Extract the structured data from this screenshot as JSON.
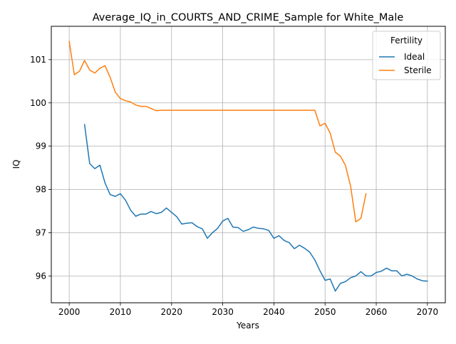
{
  "chart_data": {
    "type": "line",
    "title": "Average_IQ_in_COURTS_AND_CRIME_Sample for White_Male",
    "xlabel": "Years",
    "ylabel": "IQ",
    "xlim": [
      1996.5,
      2073.5
    ],
    "ylim": [
      95.38,
      101.77
    ],
    "x_ticks": [
      2000,
      2010,
      2020,
      2030,
      2040,
      2050,
      2060,
      2070
    ],
    "y_ticks": [
      96,
      97,
      98,
      99,
      100,
      101
    ],
    "grid": true,
    "legend": {
      "title": "Fertility",
      "placement": "top-right"
    },
    "series": [
      {
        "name": "Ideal",
        "color": "#1f77b4",
        "x": [
          2003,
          2004,
          2005,
          2006,
          2007,
          2008,
          2009,
          2010,
          2011,
          2012,
          2013,
          2014,
          2015,
          2016,
          2017,
          2018,
          2019,
          2020,
          2021,
          2022,
          2023,
          2024,
          2025,
          2026,
          2027,
          2028,
          2029,
          2030,
          2031,
          2032,
          2033,
          2034,
          2035,
          2036,
          2037,
          2038,
          2039,
          2040,
          2041,
          2042,
          2043,
          2044,
          2045,
          2046,
          2047,
          2048,
          2049,
          2050,
          2051,
          2052,
          2053,
          2054,
          2055,
          2056,
          2057,
          2058,
          2059,
          2060,
          2061,
          2062,
          2063,
          2064,
          2065,
          2066,
          2067,
          2068,
          2069,
          2070
        ],
        "values": [
          99.5,
          98.6,
          98.48,
          98.56,
          98.15,
          97.88,
          97.84,
          97.9,
          97.75,
          97.52,
          97.38,
          97.43,
          97.43,
          97.49,
          97.44,
          97.47,
          97.57,
          97.47,
          97.37,
          97.2,
          97.22,
          97.23,
          97.14,
          97.09,
          96.87,
          97.0,
          97.1,
          97.27,
          97.33,
          97.13,
          97.12,
          97.03,
          97.07,
          97.13,
          97.1,
          97.09,
          97.05,
          96.87,
          96.93,
          96.82,
          96.77,
          96.63,
          96.71,
          96.64,
          96.55,
          96.37,
          96.12,
          95.9,
          95.93,
          95.65,
          95.83,
          95.87,
          95.96,
          96.0,
          96.1,
          96.0,
          96.0,
          96.08,
          96.11,
          96.18,
          96.12,
          96.12,
          96.0,
          96.04,
          96.0,
          95.93,
          95.89,
          95.88
        ]
      },
      {
        "name": "Sterile",
        "color": "#ff7f0e",
        "x": [
          2000,
          2001,
          2002,
          2003,
          2004,
          2005,
          2006,
          2007,
          2008,
          2009,
          2010,
          2011,
          2012,
          2013,
          2014,
          2015,
          2016,
          2017,
          2018,
          2019,
          2020,
          2021,
          2022,
          2023,
          2024,
          2025,
          2026,
          2027,
          2028,
          2029,
          2030,
          2031,
          2032,
          2033,
          2034,
          2035,
          2036,
          2037,
          2038,
          2039,
          2040,
          2041,
          2042,
          2043,
          2044,
          2045,
          2046,
          2047,
          2048,
          2049,
          2050,
          2051,
          2052,
          2053,
          2054,
          2055,
          2056,
          2057,
          2058
        ],
        "values": [
          101.42,
          100.65,
          100.73,
          100.98,
          100.76,
          100.69,
          100.8,
          100.86,
          100.59,
          100.25,
          100.1,
          100.05,
          100.02,
          99.95,
          99.92,
          99.92,
          99.87,
          99.82,
          99.83,
          99.83,
          99.83,
          99.83,
          99.83,
          99.83,
          99.83,
          99.83,
          99.83,
          99.83,
          99.83,
          99.83,
          99.83,
          99.83,
          99.83,
          99.83,
          99.83,
          99.83,
          99.83,
          99.83,
          99.83,
          99.83,
          99.83,
          99.83,
          99.83,
          99.83,
          99.83,
          99.83,
          99.83,
          99.83,
          99.83,
          99.47,
          99.53,
          99.3,
          98.86,
          98.77,
          98.55,
          98.07,
          97.25,
          97.33,
          97.9
        ]
      }
    ]
  }
}
